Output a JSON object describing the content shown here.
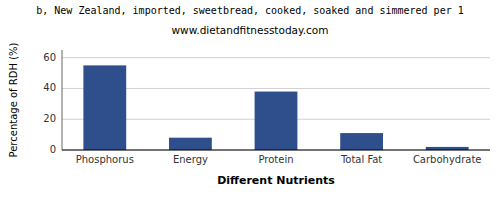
{
  "chart_data": {
    "type": "bar",
    "title": "b, New Zealand, imported, sweetbread, cooked, soaked and simmered per 1",
    "subtitle": "www.dietandfitnesstoday.com",
    "xlabel": "Different Nutrients",
    "ylabel": "Percentage of RDH (%)",
    "categories": [
      "Phosphorus",
      "Energy",
      "Protein",
      "Total Fat",
      "Carbohydrate"
    ],
    "values": [
      55,
      8,
      38,
      11,
      2
    ],
    "color": "#2e4e8c",
    "ylim": [
      0,
      65
    ],
    "yticks": [
      0,
      20,
      40,
      60
    ],
    "grid": true
  }
}
